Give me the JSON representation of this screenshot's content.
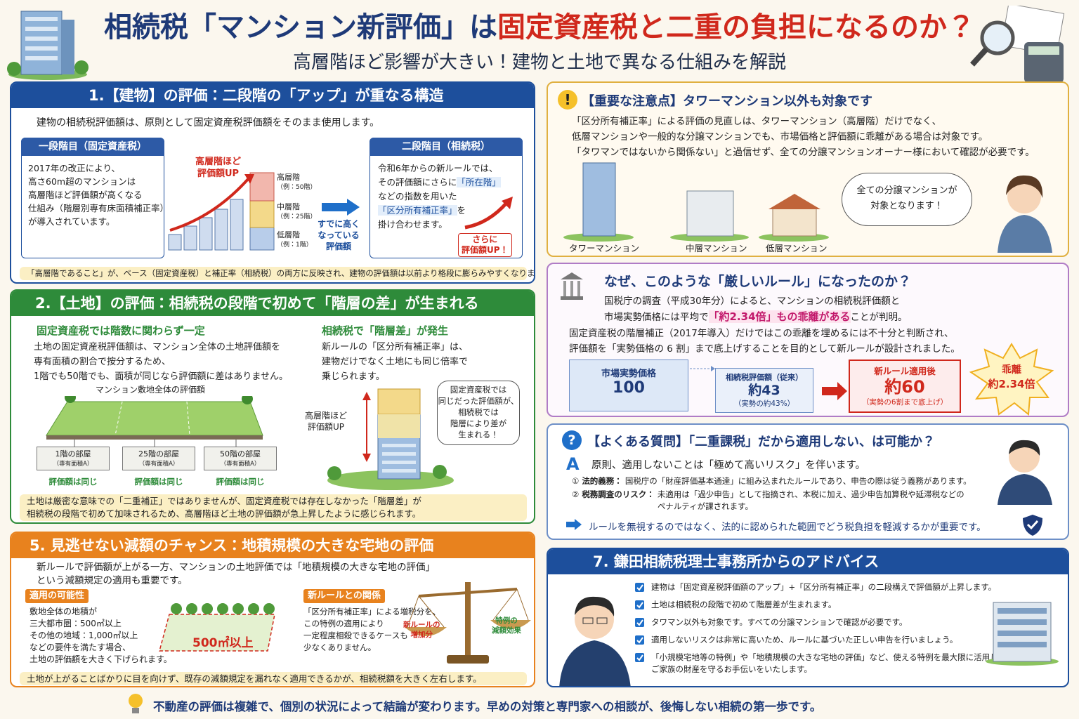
{
  "header": {
    "title_main": "相続税「マンション新評価」は",
    "title_accent": "固定資産税と二重の負担になるのか？",
    "subtitle": "高層階ほど影響が大きい！建物と土地で異なる仕組みを解説"
  },
  "section1": {
    "heading": "1.【建物】の評価：二段階の「アップ」が重なる構造",
    "intro": "建物の相続税評価額は、原則として固定資産税評価額をそのまま使用します。",
    "step1": {
      "title": "一段階目（固定資産税）",
      "body": [
        "2017年の改正により、",
        "高さ60m超のマンションは",
        "高層階ほど評価額が高くなる",
        "仕組み（階層別専有床面積補正率）",
        "が導入されています。"
      ]
    },
    "chart_label": [
      "高層階ほど",
      "評価額UP"
    ],
    "floors": [
      {
        "name": "高層階",
        "example": "（例：50階）"
      },
      {
        "name": "中層階",
        "example": "（例：25階）"
      },
      {
        "name": "低層階",
        "example": "（例：1階）"
      }
    ],
    "arrow_text": [
      "すでに高く",
      "なっている",
      "評価額"
    ],
    "step2": {
      "title": "二段階目（相続税）",
      "body_1": "令和6年からの新ルールでは、",
      "body_2a": "その評価額にさらに",
      "body_2b": "「所在階」",
      "body_3": "などの指数を用いた",
      "body_4a": "「区分所有補正率」",
      "body_4b": "を",
      "body_5": "掛け合わせます。"
    },
    "up_label": [
      "さらに",
      "評価額UP！"
    ],
    "note": "「高層階であること」が、ベース（固定資産税）と補正率（相続税）の両方に反映され、建物の評価額は以前より格段に膨らみやすくなります。"
  },
  "section2": {
    "heading": "2.【土地】の評価：相続税の段階で初めて「階層の差」が生まれる",
    "left": {
      "title": "固定資産税では階数に関わらず一定",
      "body": [
        "土地の固定資産税評価額は、マンション全体の土地評価額を",
        "専有面積の割合で按分するため、",
        "1階でも50階でも、面積が同じなら評価額に差はありません。"
      ],
      "caption": "マンション敷地全体の評価額",
      "rooms": [
        {
          "name": "1階の部屋",
          "sub": "（専有面積A）",
          "note": "評価額は同じ"
        },
        {
          "name": "25階の部屋",
          "sub": "（専有面積A）",
          "note": "評価額は同じ"
        },
        {
          "name": "50階の部屋",
          "sub": "（専有面積A）",
          "note": "評価額は同じ"
        }
      ]
    },
    "right": {
      "title": "相続税で「階層差」が発生",
      "body": [
        "新ルールの「区分所有補正率」は、",
        "建物だけでなく土地にも同じ倍率で",
        "乗じられます。"
      ],
      "tower_label": [
        "高層階ほど",
        "評価額UP"
      ],
      "bubble": [
        "固定資産税では",
        "同じだった評価額が、",
        "相続税では",
        "階層により差が",
        "生まれる！"
      ]
    },
    "note": [
      "土地は厳密な意味での「二重補正」ではありませんが、固定資産税では存在しなかった「階層差」が",
      "相続税の段階で初めて加味されるため、高層階ほど土地の評価額が急上昇したように感じられます。"
    ]
  },
  "section5": {
    "heading": "5. 見逃せない減額のチャンス：地積規模の大きな宅地の評価",
    "intro": [
      "新ルールで評価額が上がる一方、マンションの土地評価では「地積規模の大きな宅地の評価」",
      "という減額規定の適用も重要です。"
    ],
    "possibility": {
      "title": "適用の可能性",
      "body": [
        "敷地全体の地積が",
        "三大都市圏：500㎡以上",
        "その他の地域：1,000㎡以上",
        "などの要件を満たす場合、",
        "土地の評価額を大きく下げられます。"
      ]
    },
    "area_label": "500㎡以上",
    "relation": {
      "title": "新ルールとの関係",
      "body": [
        "「区分所有補正率」による増税分を、",
        "この特例の適用により",
        "一定程度相殺できるケースも",
        "少なくありません。"
      ]
    },
    "scale_left": [
      "新ルールの",
      "増加分"
    ],
    "scale_right": [
      "特例の",
      "減額効果"
    ],
    "note": "土地が上がることばかりに目を向けず、既存の減額規定を漏れなく適用できるかが、相続税額を大きく左右します。"
  },
  "important": {
    "icon": "!",
    "heading": "【重要な注意点】タワーマンション以外も対象です",
    "body": [
      "「区分所有補正率」による評価の見直しは、タワーマンション（高層階）だけでなく、",
      "低層マンションや一般的な分譲マンションでも、市場価格と評価額に乖離がある場合は対象です。",
      "「タワマンではないから関係ない」と過信せず、全ての分譲マンションオーナー様において確認が必要です。"
    ],
    "buildings": [
      "タワーマンション",
      "中層マンション",
      "低層マンション"
    ],
    "bubble": [
      "全ての分譲マンションが",
      "対象となります！"
    ]
  },
  "why": {
    "heading": "なぜ、このような「厳しいルール」になったのか？",
    "line1": "国税庁の調査（平成30年分）によると、マンションの相続税評価額と",
    "line2a": "市場実勢価格には平均で",
    "line2b": "「約2.34倍」もの乖離がある",
    "line2c": "ことが判明。",
    "line3": "固定資産税の階層補正（2017年導入）だけではこの乖離を埋めるには不十分と判断され、",
    "line4": "評価額を「実勢価格の 6 割」まで底上げすることを目的として新ルールが設計されました。",
    "market": {
      "label": "市場実勢価格",
      "value": "100"
    },
    "old": {
      "label": "相続税評価額（従来）",
      "value": "約43",
      "sub": "（実勢の約43%）"
    },
    "new": {
      "label": "新ルール適用後",
      "value": "約60",
      "sub": "（実勢の6割まで底上げ）"
    },
    "gap": {
      "label": "乖離",
      "value": "約2.34倍"
    }
  },
  "faq": {
    "icon": "?",
    "heading": "【よくある質問】「二重課税」だから適用しない、は可能か？",
    "a_mark": "A",
    "answer": "原則、適用しないことは「極めて高いリスク」を伴います。",
    "items": [
      {
        "num": "①",
        "label": "法的義務：",
        "text": [
          "国税庁の「財産評価基本通達」に組み込まれたルールであり、申告の際は従う義務があります。"
        ]
      },
      {
        "num": "②",
        "label": "税務調査のリスク：",
        "text": [
          "未適用は「過少申告」として指摘され、本税に加え、過少申告加算税や延滞税などの",
          "ペナルティが課されます。"
        ]
      }
    ],
    "conclusion": "ルールを無視するのではなく、法的に認められた範囲でどう税負担を軽減するかが重要です。"
  },
  "advice": {
    "heading": "7. 鎌田相続税理士事務所からのアドバイス",
    "items": [
      [
        "建物は「固定資産税評価額のアップ」+「区分所有補正率」の二段構えで評価額が上昇します。"
      ],
      [
        "土地は相続税の段階で初めて階層差が生まれます。"
      ],
      [
        "タワマン以外も対象です。すべての分譲マンションで確認が必要です。"
      ],
      [
        "適用しないリスクは非常に高いため、ルールに基づいた正しい申告を行いましょう。"
      ],
      [
        "「小規模宅地等の特例」や「地積規模の大きな宅地の評価」など、使える特例を最大限に活用し、",
        "ご家族の財産を守るお手伝いをいたします。"
      ]
    ]
  },
  "footer": {
    "text": "不動産の評価は複雑で、個別の状況によって結論が変わります。早めの対策と専門家への相談が、後悔しない相続の第一歩です。"
  }
}
